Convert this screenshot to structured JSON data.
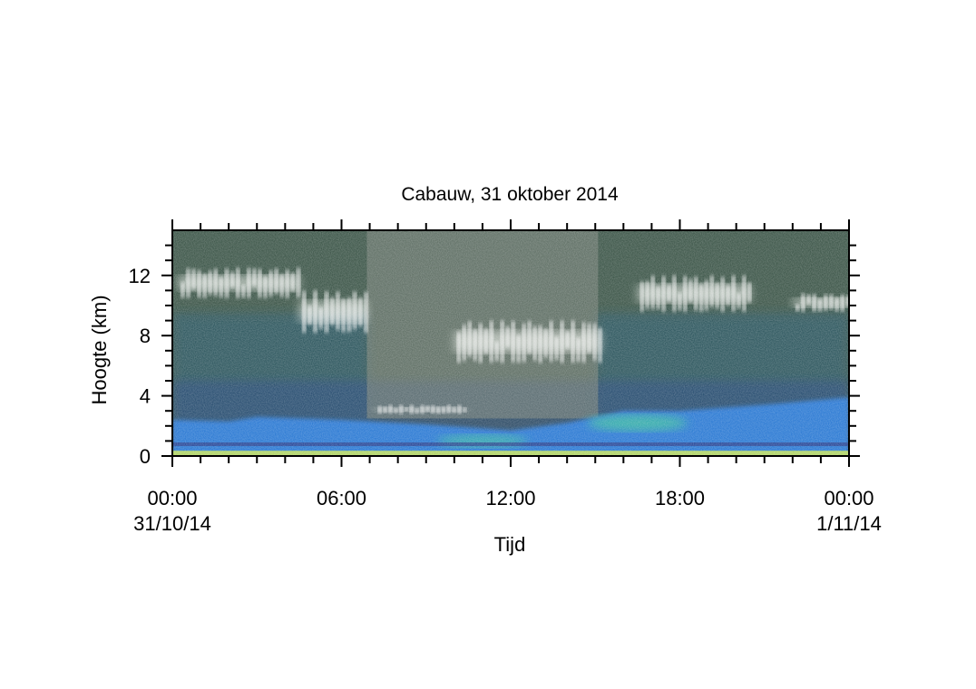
{
  "chart_data": {
    "type": "heatmap",
    "title": "Cabauw, 31 oktober 2014",
    "xlabel": "Tijd",
    "ylabel": "Hoogte (km)",
    "xlim": [
      0,
      24
    ],
    "ylim": [
      0,
      15
    ],
    "x_ticks": [
      {
        "value": 0,
        "time": "00:00",
        "date": "31/10/14"
      },
      {
        "value": 6,
        "time": "06:00",
        "date": ""
      },
      {
        "value": 12,
        "time": "12:00",
        "date": ""
      },
      {
        "value": 18,
        "time": "18:00",
        "date": ""
      },
      {
        "value": 24,
        "time": "00:00",
        "date": "1/11/14"
      }
    ],
    "y_ticks": [
      {
        "value": 0,
        "label": "0"
      },
      {
        "value": 4,
        "label": "4"
      },
      {
        "value": 8,
        "label": "8"
      },
      {
        "value": 12,
        "label": "12"
      }
    ],
    "features": [
      {
        "kind": "boundary-layer",
        "x": [
          0,
          24
        ],
        "y": [
          0,
          2.5
        ]
      },
      {
        "kind": "cirrus-cloud",
        "x": [
          0.2,
          4.5
        ],
        "y": [
          10.5,
          12.5
        ]
      },
      {
        "kind": "cirrus-cloud",
        "x": [
          4.5,
          6.9
        ],
        "y": [
          8.2,
          11
        ]
      },
      {
        "kind": "cloud",
        "x": [
          7.2,
          10.4
        ],
        "y": [
          2.8,
          3.4
        ]
      },
      {
        "kind": "cirrus-cloud",
        "x": [
          10,
          15.2
        ],
        "y": [
          6.2,
          9
        ]
      },
      {
        "kind": "cirrus-cloud",
        "x": [
          16.5,
          20.5
        ],
        "y": [
          9.6,
          12
        ]
      },
      {
        "kind": "cirrus-cloud",
        "x": [
          22,
          24
        ],
        "y": [
          9.6,
          10.8
        ]
      }
    ],
    "colors": {
      "background": "#2f4a3c",
      "aerosol": "#1f6fd0",
      "cloud": "#f2f4ee"
    }
  }
}
